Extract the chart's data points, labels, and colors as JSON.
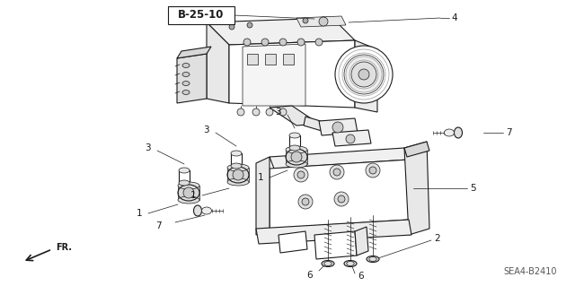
{
  "title": "B-25-10",
  "part_number": "SEA4-B2410",
  "background_color": "#ffffff",
  "line_color": "#1a1a1a",
  "fig_width": 6.4,
  "fig_height": 3.19,
  "dpi": 100,
  "label_fontsize": 7.5,
  "title_fontsize": 8.5,
  "part_fontsize": 7,
  "fr_fontsize": 7
}
